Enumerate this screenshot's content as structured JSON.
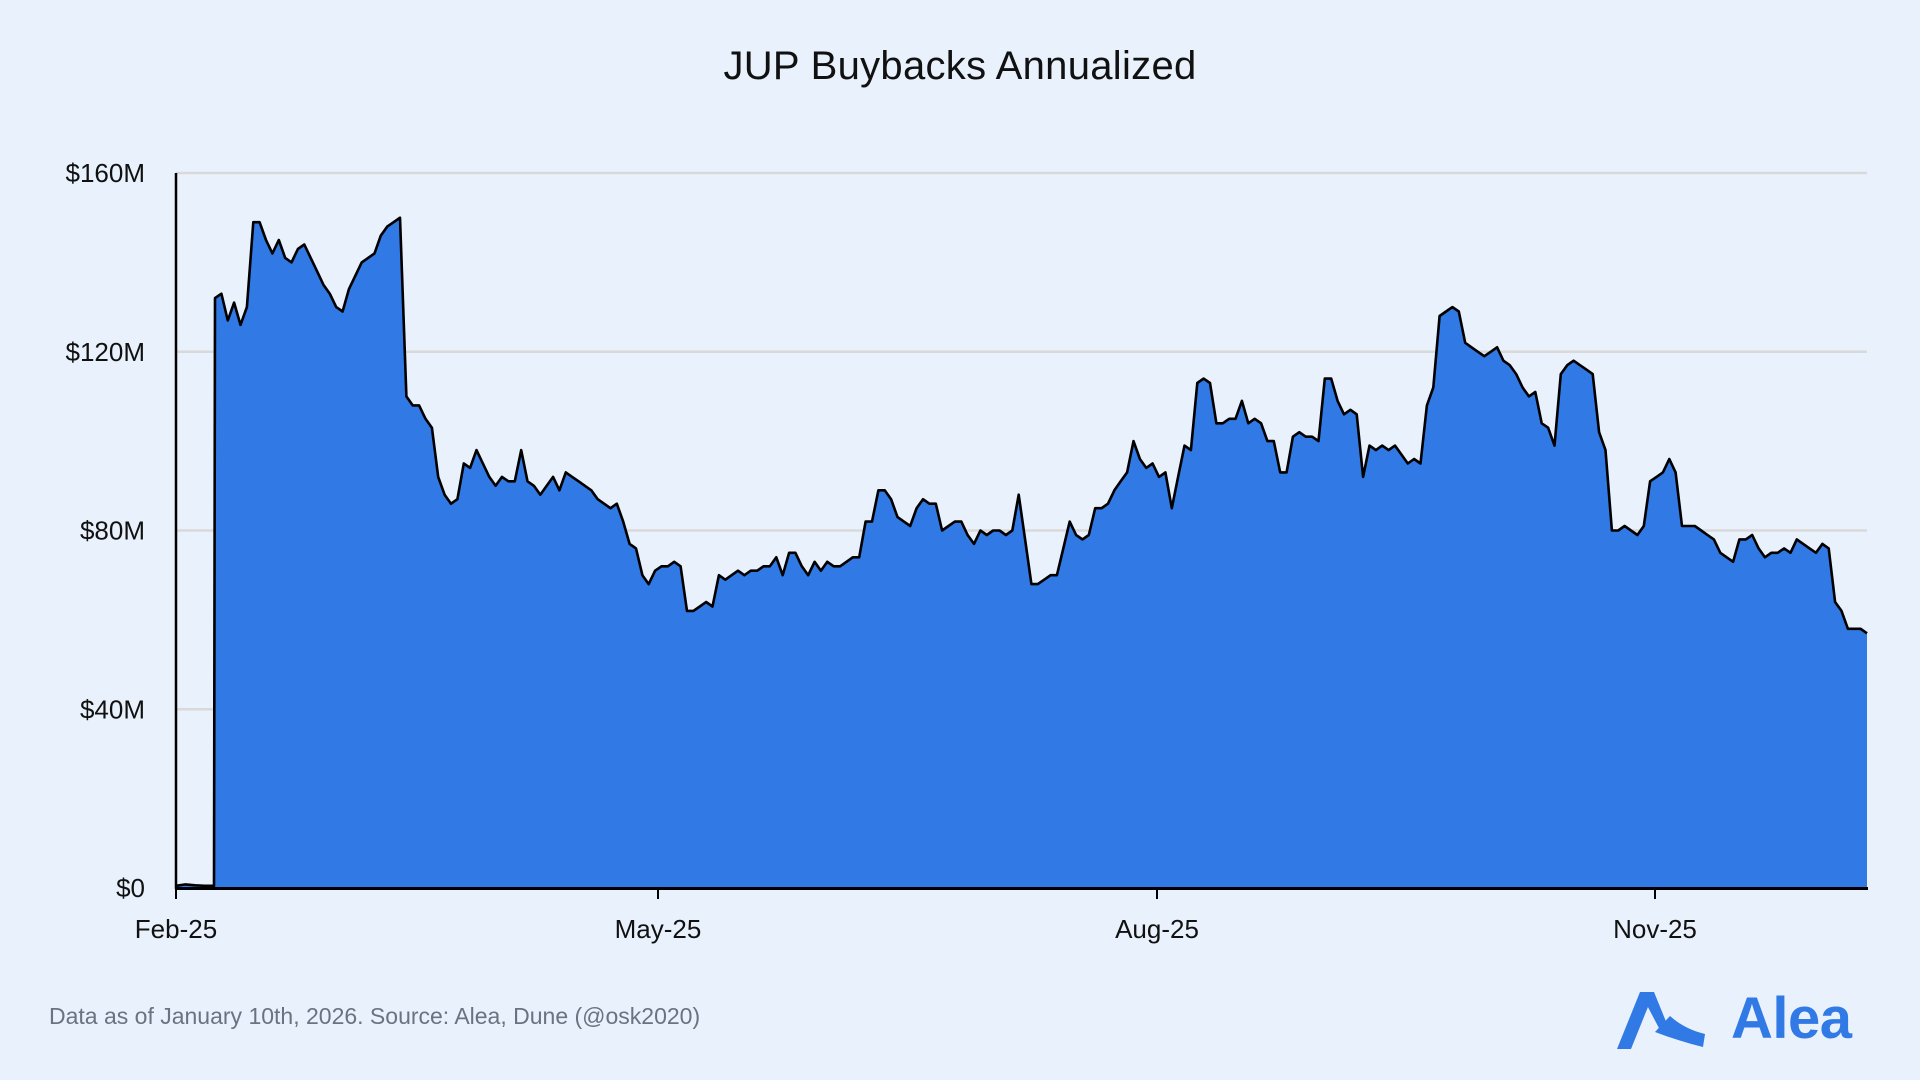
{
  "title": "JUP Buybacks Annualized",
  "footnote": "Data as of January 10th, 2026. Source: Alea, Dune (@osk2020)",
  "brand": {
    "name": "Alea",
    "color": "#3179e4"
  },
  "colors": {
    "fill": "#3179e4",
    "line": "#000000",
    "grid": "#d9d9d9",
    "background": "#e8f1fc"
  },
  "chart_data": {
    "type": "area",
    "title": "JUP Buybacks Annualized",
    "xlabel": "",
    "ylabel": "",
    "ylim": [
      0,
      160
    ],
    "yticks": [
      0,
      40,
      80,
      120,
      160
    ],
    "ytick_labels": [
      "$0",
      "$40M",
      "$80M",
      "$120M",
      "$160M"
    ],
    "xtick_labels": [
      "Feb-25",
      "May-25",
      "Aug-25",
      "Nov-25"
    ],
    "grid": true,
    "legend": "none",
    "units": "USD millions (annualized)",
    "x_start": "Feb-25",
    "x_end": "Jan-26",
    "series": [
      {
        "name": "JUP Buybacks Annualized",
        "values": [
          0.5,
          0.8,
          0.6,
          0.5,
          0.5,
          132,
          133,
          127,
          131,
          126,
          130,
          149,
          149,
          145,
          142,
          145,
          141,
          140,
          143,
          144,
          141,
          138,
          135,
          133,
          130,
          129,
          134,
          137,
          140,
          141,
          142,
          146,
          148,
          149,
          150,
          110,
          108,
          108,
          105,
          103,
          92,
          88,
          86,
          87,
          95,
          94,
          98,
          95,
          92,
          90,
          92,
          91,
          91,
          98,
          91,
          90,
          88,
          90,
          92,
          89,
          93,
          92,
          91,
          90,
          89,
          87,
          86,
          85,
          86,
          82,
          77,
          76,
          70,
          68,
          71,
          72,
          72,
          73,
          72,
          62,
          62,
          63,
          64,
          63,
          70,
          69,
          70,
          71,
          70,
          71,
          71,
          72,
          72,
          74,
          70,
          75,
          75,
          72,
          70,
          73,
          71,
          73,
          72,
          72,
          73,
          74,
          74,
          82,
          82,
          89,
          89,
          87,
          83,
          82,
          81,
          85,
          87,
          86,
          86,
          80,
          81,
          82,
          82,
          79,
          77,
          80,
          79,
          80,
          80,
          79,
          80,
          88,
          78,
          68,
          68,
          69,
          70,
          70,
          76,
          82,
          79,
          78,
          79,
          85,
          85,
          86,
          89,
          91,
          93,
          100,
          96,
          94,
          95,
          92,
          93,
          85,
          92,
          99,
          98,
          113,
          114,
          113,
          104,
          104,
          105,
          105,
          109,
          104,
          105,
          104,
          100,
          100,
          93,
          93,
          101,
          102,
          101,
          101,
          100,
          114,
          114,
          109,
          106,
          107,
          106,
          92,
          99,
          98,
          99,
          98,
          99,
          97,
          95,
          96,
          95,
          108,
          112,
          128,
          129,
          130,
          129,
          122,
          121,
          120,
          119,
          120,
          121,
          118,
          117,
          115,
          112,
          110,
          111,
          104,
          103,
          99,
          115,
          117,
          118,
          117,
          116,
          115,
          102,
          98,
          80,
          80,
          81,
          80,
          79,
          81,
          91,
          92,
          93,
          96,
          93,
          81,
          81,
          81,
          80,
          79,
          78,
          75,
          74,
          73,
          78,
          78,
          79,
          76,
          74,
          75,
          75,
          76,
          75,
          78,
          77,
          76,
          75,
          77,
          76,
          64,
          62,
          58,
          58,
          58,
          57
        ]
      }
    ]
  }
}
